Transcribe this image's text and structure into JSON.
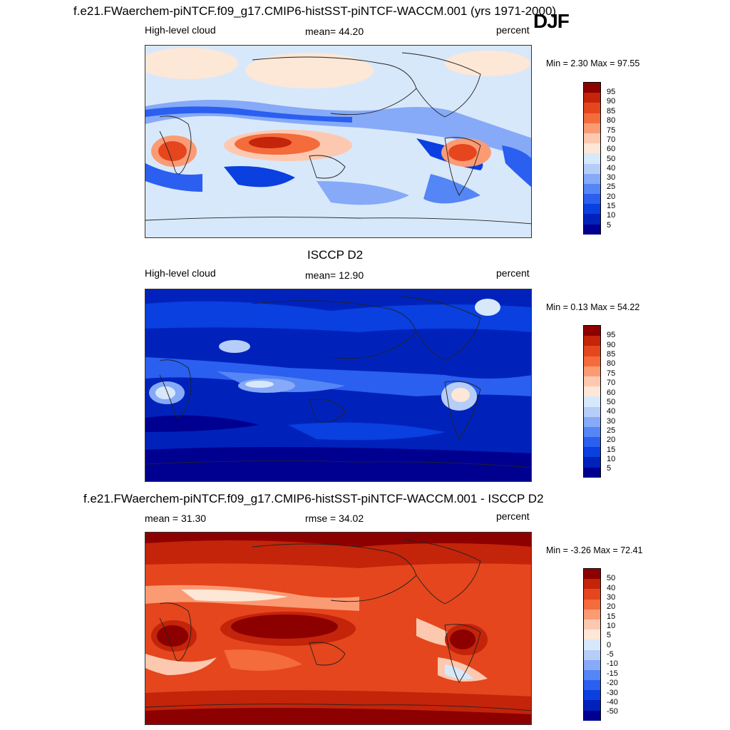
{
  "season": "DJF",
  "panels": [
    {
      "title": "f.e21.FWaerchem-piNTCF.f09_g17.CMIP6-histSST-piNTCF-WACCM.001 (yrs 1971-2000)",
      "left_label": "High-level cloud",
      "center_label": "mean=  44.20",
      "right_label": "percent",
      "minmax": "Min =   2.30 Max =  97.55",
      "colorbar_ticks": [
        "95",
        "90",
        "85",
        "80",
        "75",
        "70",
        "60",
        "50",
        "40",
        "30",
        "25",
        "20",
        "15",
        "10",
        "5"
      ]
    },
    {
      "title": "ISCCP D2",
      "left_label": "High-level cloud",
      "center_label": "mean=  12.90",
      "right_label": "percent",
      "minmax": "Min =   0.13 Max =  54.22",
      "colorbar_ticks": [
        "95",
        "90",
        "85",
        "80",
        "75",
        "70",
        "60",
        "50",
        "40",
        "30",
        "25",
        "20",
        "15",
        "10",
        "5"
      ]
    },
    {
      "title": "f.e21.FWaerchem-piNTCF.f09_g17.CMIP6-histSST-piNTCF-WACCM.001 - ISCCP D2",
      "left_label": "mean =  31.30",
      "center_label": "rmse =  34.02",
      "right_label": "percent",
      "minmax": "Min =  -3.26 Max =  72.41",
      "colorbar_ticks": [
        "50",
        "40",
        "30",
        "20",
        "15",
        "10",
        "5",
        "0",
        "-5",
        "-10",
        "-15",
        "-20",
        "-30",
        "-40",
        "-50"
      ]
    }
  ],
  "colors": {
    "palette": [
      "#000090",
      "#0022bb",
      "#0a3fe0",
      "#2a5ff0",
      "#5586f5",
      "#86aaf7",
      "#b6cdf9",
      "#d8e8fb",
      "#fde7d6",
      "#fcc9b0",
      "#fb9b74",
      "#f46b3c",
      "#e5461d",
      "#c3240a",
      "#8d0000"
    ]
  }
}
